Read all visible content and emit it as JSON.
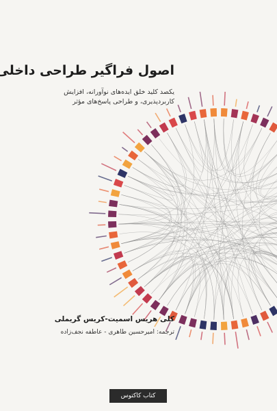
{
  "cover": {
    "title": "اصول فراگیر طراحی داخلی",
    "subtitle_line1": "یکصد کلید خلق ایده‌های نوآورانه، افزایش",
    "subtitle_line2": "کاربردپذیری، و طراحی پاسخ‌های مؤثر",
    "authors": "کلی هریس اسمیت-کریس گریملی",
    "translators": "ترجمه: امیرحسین طاهری - عاطفه نجف‌زاده",
    "publisher": "کتاب کاکتوس"
  },
  "colors": {
    "background": "#f6f5f2",
    "segment_palette": [
      "#e8663a",
      "#d9484a",
      "#c23a4e",
      "#a33456",
      "#7c2f5c",
      "#4e2f63",
      "#2e3466",
      "#f08a3a",
      "#f2a33f",
      "#e05a3d"
    ],
    "network_lines": "#8a8a8a"
  }
}
